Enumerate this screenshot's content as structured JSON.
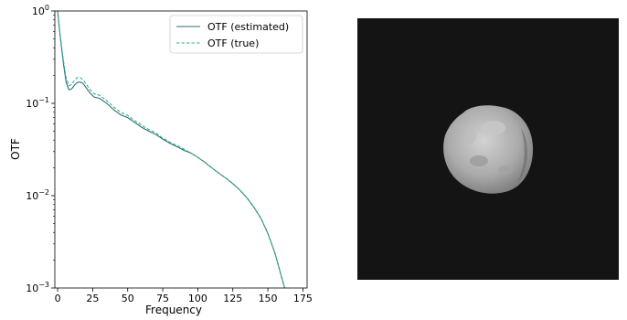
{
  "chart_data": [
    {
      "type": "line",
      "xlabel": "Frequency",
      "ylabel": "OTF",
      "xlim": [
        -2,
        178
      ],
      "ylim": [
        0.001,
        1
      ],
      "yscale": "log",
      "grid": false,
      "legend_position": "top-right",
      "x_ticks": [
        "0",
        "25",
        "50",
        "75",
        "100",
        "125",
        "150",
        "175"
      ],
      "x_tick_values": [
        0,
        25,
        50,
        75,
        100,
        125,
        150,
        175
      ],
      "y_tick_values": [
        1,
        0.1,
        0.01,
        0.001
      ],
      "y_ticks": [
        {
          "base": "10",
          "exp": "0"
        },
        {
          "base": "10",
          "exp": "−1"
        },
        {
          "base": "10",
          "exp": "−2"
        },
        {
          "base": "10",
          "exp": "−3"
        }
      ],
      "series": [
        {
          "name": "OTF (estimated)",
          "color": "#2e6e74",
          "style": "solid",
          "x": [
            0,
            1,
            2,
            4,
            6,
            8,
            10,
            12,
            14,
            16,
            18,
            20,
            23,
            26,
            30,
            35,
            40,
            45,
            50,
            55,
            60,
            65,
            70,
            75,
            80,
            85,
            90,
            95,
            100,
            105,
            110,
            115,
            120,
            125,
            130,
            135,
            140,
            145,
            150,
            155,
            160,
            162
          ],
          "y": [
            1.0,
            0.7,
            0.5,
            0.28,
            0.17,
            0.14,
            0.143,
            0.158,
            0.168,
            0.17,
            0.165,
            0.15,
            0.13,
            0.117,
            0.113,
            0.1,
            0.085,
            0.075,
            0.07,
            0.062,
            0.055,
            0.05,
            0.046,
            0.041,
            0.037,
            0.034,
            0.031,
            0.029,
            0.026,
            0.023,
            0.02,
            0.0175,
            0.0155,
            0.0135,
            0.0115,
            0.0095,
            0.0075,
            0.0057,
            0.0039,
            0.0024,
            0.00128,
            0.001
          ]
        },
        {
          "name": "OTF (true)",
          "color": "#3ab08f",
          "style": "dashed",
          "x": [
            0,
            1,
            2,
            4,
            6,
            8,
            10,
            12,
            14,
            16,
            18,
            20,
            23,
            26,
            30,
            35,
            40,
            45,
            50,
            55,
            60,
            65,
            70,
            75,
            80,
            85,
            90,
            95,
            100,
            105,
            110,
            115,
            120,
            125,
            130,
            135,
            140,
            145,
            150,
            155,
            160,
            162
          ],
          "y": [
            1.0,
            0.72,
            0.52,
            0.3,
            0.19,
            0.155,
            0.16,
            0.178,
            0.19,
            0.19,
            0.18,
            0.165,
            0.142,
            0.127,
            0.122,
            0.107,
            0.091,
            0.08,
            0.074,
            0.065,
            0.058,
            0.052,
            0.048,
            0.042,
            0.038,
            0.035,
            0.032,
            0.029,
            0.026,
            0.023,
            0.02,
            0.0175,
            0.0155,
            0.0135,
            0.0115,
            0.0095,
            0.0075,
            0.0057,
            0.0039,
            0.0024,
            0.00128,
            0.001
          ]
        }
      ]
    }
  ],
  "image_panel": {
    "description_icon": "asteroid-image",
    "background_color": "#141414",
    "object_color": "#b4b4b4"
  }
}
